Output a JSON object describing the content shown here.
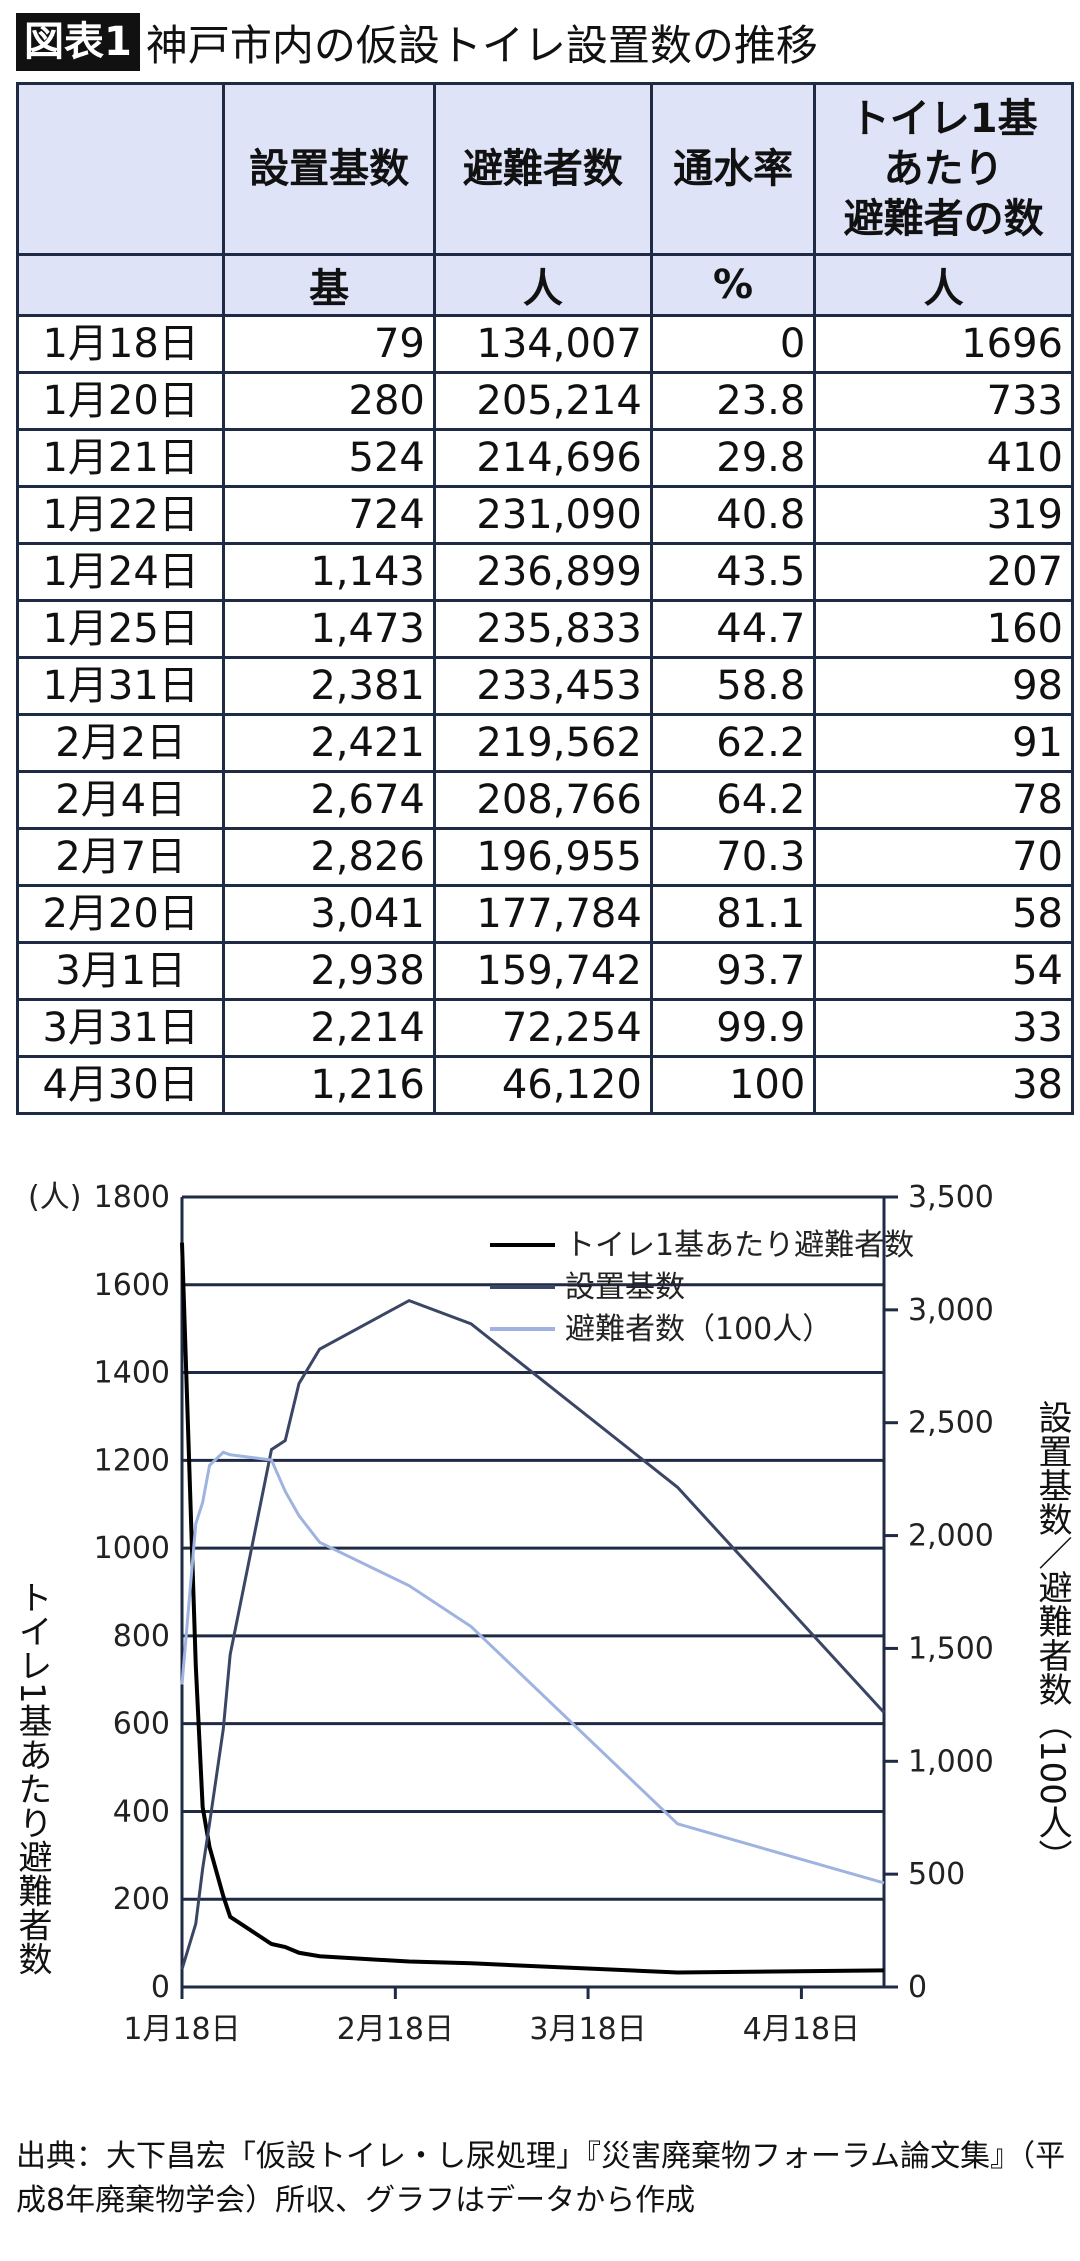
{
  "title": {
    "badge": "図表1",
    "text": "神戸市内の仮設トイレ設置数の推移"
  },
  "table": {
    "headers": [
      "",
      "設置基数",
      "避難者数",
      "通水率",
      "トイレ1基あたり避難者の数"
    ],
    "header_lines": [
      "トイレ1基",
      "あたり",
      "避難者の数"
    ],
    "units": [
      "",
      "基",
      "人",
      "%",
      "人"
    ],
    "rows": [
      [
        "1月18日",
        "79",
        "134,007",
        "0",
        "1696"
      ],
      [
        "1月20日",
        "280",
        "205,214",
        "23.8",
        "733"
      ],
      [
        "1月21日",
        "524",
        "214,696",
        "29.8",
        "410"
      ],
      [
        "1月22日",
        "724",
        "231,090",
        "40.8",
        "319"
      ],
      [
        "1月24日",
        "1,143",
        "236,899",
        "43.5",
        "207"
      ],
      [
        "1月25日",
        "1,473",
        "235,833",
        "44.7",
        "160"
      ],
      [
        "1月31日",
        "2,381",
        "233,453",
        "58.8",
        "98"
      ],
      [
        "2月2日",
        "2,421",
        "219,562",
        "62.2",
        "91"
      ],
      [
        "2月4日",
        "2,674",
        "208,766",
        "64.2",
        "78"
      ],
      [
        "2月7日",
        "2,826",
        "196,955",
        "70.3",
        "70"
      ],
      [
        "2月20日",
        "3,041",
        "177,784",
        "81.1",
        "58"
      ],
      [
        "3月1日",
        "2,938",
        "159,742",
        "93.7",
        "54"
      ],
      [
        "3月31日",
        "2,214",
        "72,254",
        "99.9",
        "33"
      ],
      [
        "4月30日",
        "1,216",
        "46,120",
        "100",
        "38"
      ]
    ]
  },
  "chart_data": {
    "type": "line",
    "x": [
      "1月18日",
      "1月20日",
      "1月21日",
      "1月22日",
      "1月24日",
      "1月25日",
      "1月31日",
      "2月2日",
      "2月4日",
      "2月7日",
      "2月20日",
      "3月1日",
      "3月31日",
      "4月30日"
    ],
    "xticks": [
      "1月18日",
      "2月18日",
      "3月18日",
      "4月18日"
    ],
    "left_axis": {
      "unit_label": "(人)",
      "label": "トイレ1基あたり避難者数",
      "ylim": [
        0,
        1800
      ],
      "ticks": [
        "0",
        "200",
        "400",
        "600",
        "800",
        "1000",
        "1200",
        "1400",
        "1600",
        "1800"
      ]
    },
    "right_axis": {
      "label": "設置基数／避難者数（100人）",
      "ylim": [
        0,
        3500
      ],
      "ticks": [
        "0",
        "500",
        "1,000",
        "1,500",
        "2,000",
        "2,500",
        "3,000",
        "3,500"
      ]
    },
    "grid": true,
    "legend_position": "top-right",
    "series": [
      {
        "name": "トイレ1基あたり避難者数",
        "axis": "left",
        "color": "#000000",
        "values": [
          1696,
          733,
          410,
          319,
          207,
          160,
          98,
          91,
          78,
          70,
          58,
          54,
          33,
          38
        ]
      },
      {
        "name": "設置基数",
        "axis": "right",
        "color": "#3b4564",
        "values": [
          79,
          280,
          524,
          724,
          1143,
          1473,
          2381,
          2421,
          2674,
          2826,
          3041,
          2938,
          2214,
          1216
        ]
      },
      {
        "name": "避難者数（100人）",
        "axis": "right",
        "color": "#9fb3e0",
        "values": [
          1340,
          2052,
          2147,
          2311,
          2369,
          2358,
          2335,
          2196,
          2088,
          1970,
          1778,
          1597,
          723,
          461
        ]
      }
    ]
  },
  "footer": "出典：大下昌宏「仮設トイレ・し尿処理」『災害廃棄物フォーラム論文集』（平成8年廃棄物学会）所収、グラフはデータから作成"
}
